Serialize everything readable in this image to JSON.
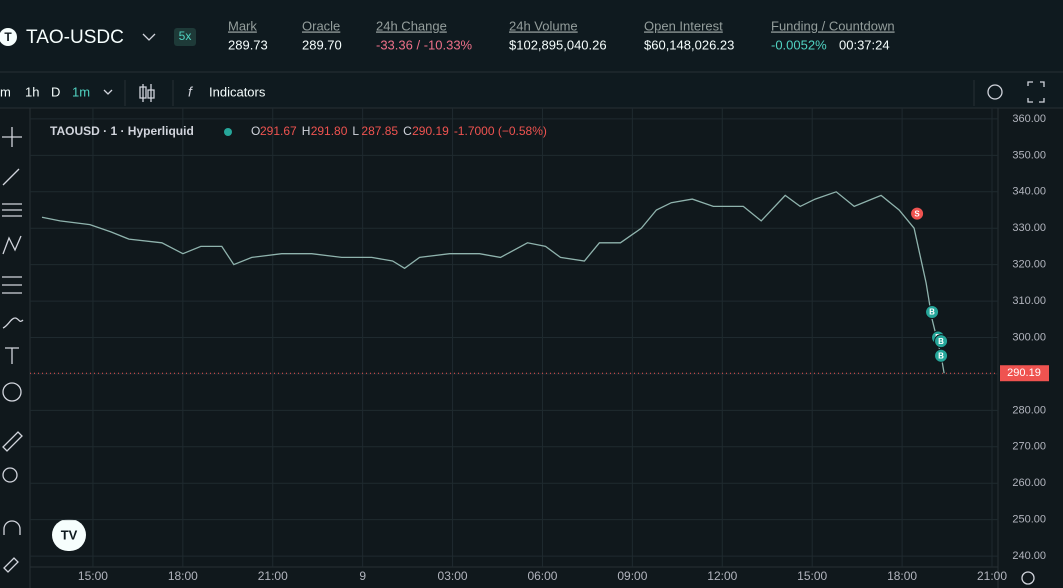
{
  "header": {
    "pair": "TAO-USDC",
    "leverage": "5x",
    "stats": [
      {
        "label": "Mark",
        "value": "289.73"
      },
      {
        "label": "Oracle",
        "value": "289.70"
      },
      {
        "label": "24h Change",
        "value": "-33.36 / -10.33%"
      },
      {
        "label": "24h Volume",
        "value": "$102,895,040.26"
      },
      {
        "label": "Open Interest",
        "value": "$60,148,026.23"
      },
      {
        "label": "Funding / Countdown",
        "value": "-0.0052%",
        "extra": "00:37:24"
      }
    ]
  },
  "toolbar": {
    "intervals": [
      "m",
      "1h",
      "D",
      "1m"
    ],
    "indicators": "Indicators"
  },
  "legend": {
    "symbol": "TAOUSD · 1 · Hyperliquid",
    "ohlc": [
      {
        "k": "O",
        "v": "291.67"
      },
      {
        "k": "H",
        "v": "291.80"
      },
      {
        "k": "L",
        "v": "287.85"
      },
      {
        "k": "C",
        "v": "290.19"
      }
    ],
    "change": "-1.7000 (−0.58%)"
  },
  "chart_data": {
    "type": "line",
    "color": "#8fb3ad",
    "x": [
      13.3,
      13.9,
      14.9,
      15.6,
      16.2,
      17.3,
      18.0,
      18.6,
      19.3,
      19.7,
      20.3,
      21.3,
      22.3,
      23.3,
      24.3,
      25.0,
      25.4,
      25.9,
      26.9,
      27.9,
      28.6,
      29.5,
      30.1,
      30.6,
      31.4,
      31.9,
      32.6,
      33.3,
      33.8,
      34.3,
      35.0,
      35.7,
      36.7,
      37.3,
      38.1,
      38.6,
      39.1,
      39.8,
      40.4,
      41.3,
      41.9,
      42.4,
      42.8,
      43.0,
      43.3,
      43.4
    ],
    "values": [
      333,
      332,
      331,
      329,
      327,
      326,
      323,
      325,
      325,
      320,
      322,
      323,
      323,
      322,
      322,
      321,
      319,
      322,
      323,
      323,
      322,
      326,
      325,
      322,
      321,
      326,
      326,
      330,
      335,
      337,
      338,
      336,
      336,
      332,
      339,
      336,
      338,
      340,
      336,
      339,
      335,
      330,
      315,
      305,
      295,
      290.19
    ],
    "xlim": [
      13.3,
      45.2
    ],
    "ylim": [
      237,
      363
    ],
    "xticks": [
      {
        "value": 15,
        "label": "15:00"
      },
      {
        "value": 18,
        "label": "18:00"
      },
      {
        "value": 21,
        "label": "21:00"
      },
      {
        "value": 24,
        "label": "9"
      },
      {
        "value": 27,
        "label": "03:00"
      },
      {
        "value": 30,
        "label": "06:00"
      },
      {
        "value": 33,
        "label": "09:00"
      },
      {
        "value": 36,
        "label": "12:00"
      },
      {
        "value": 39,
        "label": "15:00"
      },
      {
        "value": 42,
        "label": "18:00"
      },
      {
        "value": 45,
        "label": "21:00"
      }
    ],
    "yticks": [
      {
        "value": 240,
        "label": "240.00"
      },
      {
        "value": 250,
        "label": "250.00"
      },
      {
        "value": 260,
        "label": "260.00"
      },
      {
        "value": 270,
        "label": "270.00"
      },
      {
        "value": 280,
        "label": "280.00"
      },
      {
        "value": 290,
        "label": "290.00"
      },
      {
        "value": 300,
        "label": "300.00"
      },
      {
        "value": 310,
        "label": "310.00"
      },
      {
        "value": 320,
        "label": "320.00"
      },
      {
        "value": 330,
        "label": "330.00"
      },
      {
        "value": 340,
        "label": "340.00"
      },
      {
        "value": 350,
        "label": "350.00"
      },
      {
        "value": 360,
        "label": "360.00"
      }
    ],
    "grid": true,
    "last_price": 290.19,
    "trades": [
      {
        "label": "S",
        "x": 42.5,
        "y": 334,
        "color": "#ef5350"
      },
      {
        "label": "B",
        "x": 43.0,
        "y": 307,
        "color": "#26a69a"
      },
      {
        "label": "B",
        "x": 43.2,
        "y": 300,
        "color": "#26a69a"
      },
      {
        "label": "B",
        "x": 43.3,
        "y": 299,
        "color": "#26a69a"
      },
      {
        "label": "B",
        "x": 43.3,
        "y": 295,
        "color": "#26a69a"
      }
    ]
  }
}
